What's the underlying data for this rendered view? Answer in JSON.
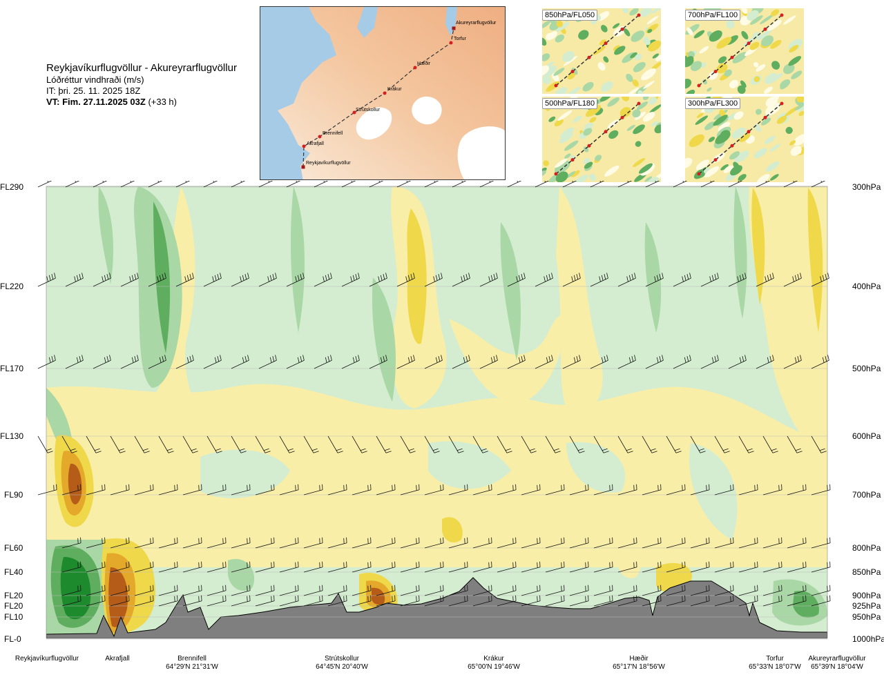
{
  "header": {
    "route_title": "Reykjavíkurflugvöllur - Akureyrarflugvöllur",
    "product": "Lóðréttur vindhraði (m/s)",
    "issue_time": "IT: þri. 25. 11. 2025 18Z",
    "valid_label": "VT: Fim. 27.11.2025 03Z",
    "valid_offset": "(+33 h)"
  },
  "route_map": {
    "points": [
      {
        "name": "Akureyrarflugvöllur"
      },
      {
        "name": "Torfur"
      },
      {
        "name": "Hæðir"
      },
      {
        "name": "Krákur"
      },
      {
        "name": "Strútskollur"
      },
      {
        "name": "Brennifell"
      },
      {
        "name": "Akrafjall"
      },
      {
        "name": "Reykjavíkurflugvöllur"
      }
    ],
    "colors": {
      "sea": "#a6cbe6",
      "land_low": "#f7e3cf",
      "land_high": "#f2b88a",
      "glacier": "#ffffff",
      "track": "#333333",
      "waypoint": "#d62020"
    }
  },
  "insets": [
    {
      "label": "850hPa/FL050"
    },
    {
      "label": "700hPa/FL100"
    },
    {
      "label": "500hPa/FL180"
    },
    {
      "label": "300hPa/FL300"
    }
  ],
  "chart_data": {
    "type": "heatmap",
    "variable": "Lóðréttur vindhraði (m/s)",
    "y_levels": [
      {
        "fl": "FL290",
        "hpa": "300hPa"
      },
      {
        "fl": "FL220",
        "hpa": "400hPa"
      },
      {
        "fl": "FL170",
        "hpa": "500hPa"
      },
      {
        "fl": "FL130",
        "hpa": "600hPa"
      },
      {
        "fl": "FL90",
        "hpa": "700hPa"
      },
      {
        "fl": "FL60",
        "hpa": "800hPa"
      },
      {
        "fl": "FL40",
        "hpa": "850hPa"
      },
      {
        "fl": "FL20",
        "hpa": "900hPa"
      },
      {
        "fl": "FL20",
        "hpa": "925hPa"
      },
      {
        "fl": "FL10",
        "hpa": "950hPa"
      },
      {
        "fl": "FL-0",
        "hpa": "1000hPa"
      }
    ],
    "waypoints": [
      {
        "name": "Reykjavíkurflugvöllur",
        "coord": ""
      },
      {
        "name": "Akrafjall",
        "coord": ""
      },
      {
        "name": "Brennifell",
        "coord": "64°29'N 21°31'W"
      },
      {
        "name": "Strútskollur",
        "coord": "64°45'N 20°40'W"
      },
      {
        "name": "Krákur",
        "coord": "65°00'N 19°46'W"
      },
      {
        "name": "Hæðir",
        "coord": "65°17'N 18°56'W"
      },
      {
        "name": "Torfur",
        "coord": "65°33'N 18°07'W"
      },
      {
        "name": "Akureyrarflugvöllur",
        "coord": "65°39'N 18°04'W"
      }
    ],
    "colors": {
      "strong_down_dark": "#1e8a2e",
      "down_med": "#5fae5f",
      "down_light": "#a9d7a6",
      "down_faint": "#d4edd0",
      "neutral": "#fffbe4",
      "up_faint": "#f8eea8",
      "up_light": "#efd94a",
      "up_med": "#e4a82a",
      "up_strong": "#b55d18",
      "up_extreme": "#6e2a10",
      "terrain": "#7f7f7f"
    }
  }
}
